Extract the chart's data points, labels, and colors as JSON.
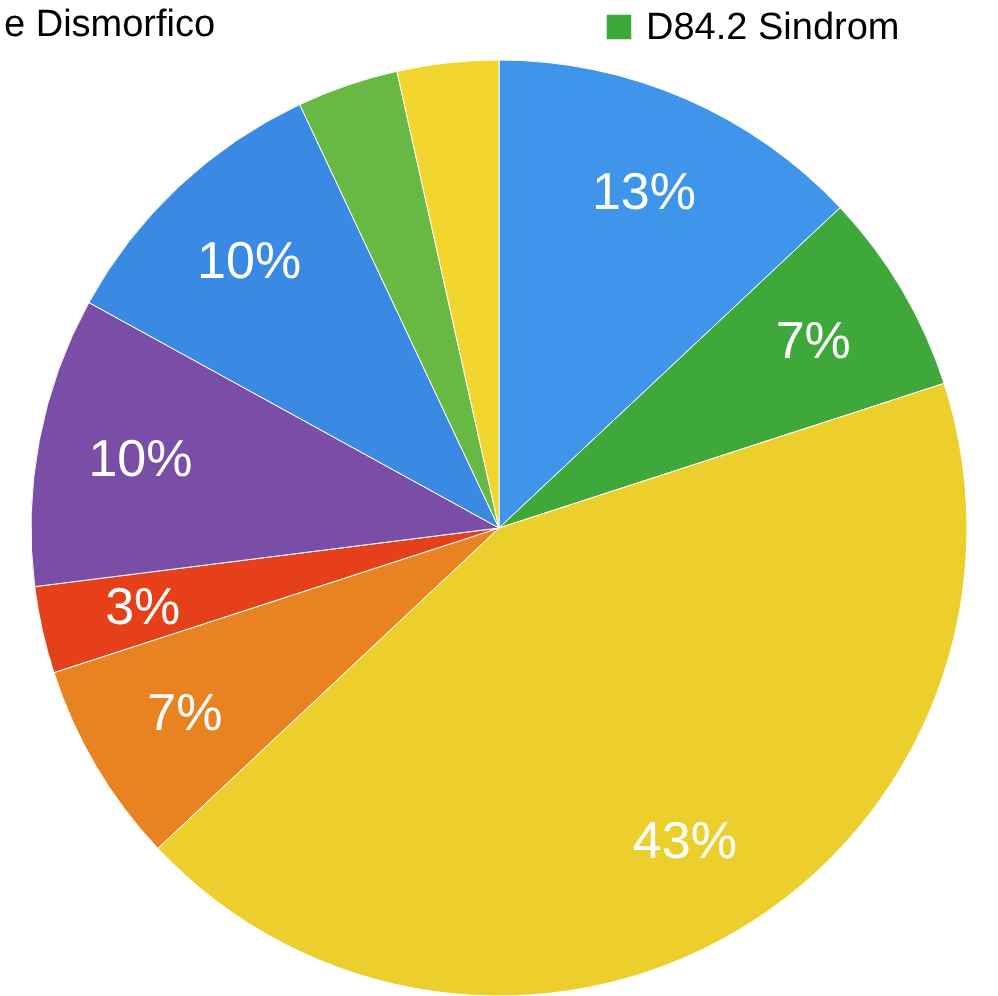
{
  "chart_data": {
    "type": "pie",
    "categories": [
      null,
      "D84.2 Sindrom",
      null,
      null,
      null,
      null,
      null,
      null,
      null
    ],
    "values": [
      13,
      7,
      43,
      7,
      3,
      10,
      10,
      3.5,
      3.5
    ],
    "value_labels": [
      "13%",
      "7%",
      "43%",
      "7%",
      "3%",
      "10%",
      "10%",
      null,
      null
    ],
    "colors": [
      "#3f95ea",
      "#3fa83a",
      "#eccf2c",
      "#e98322",
      "#e5401a",
      "#7a4ea6",
      "#3a8ae3",
      "#67b944",
      "#f2d62e"
    ],
    "legend": "top right",
    "annotations": [
      "e Dismorfico"
    ]
  }
}
